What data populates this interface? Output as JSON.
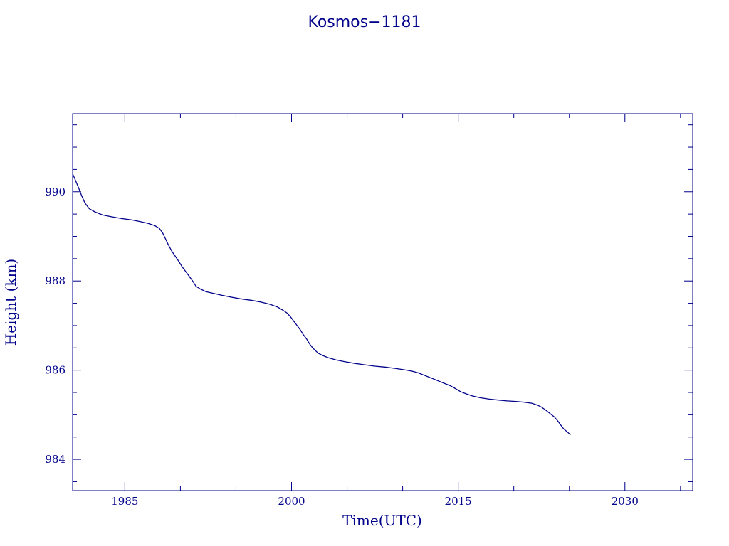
{
  "chart_data": {
    "type": "line",
    "title": "Kosmos−1181",
    "xlabel": "Time(UTC)",
    "ylabel": "Height  (km)",
    "xlim": [
      1980.3,
      2036.1
    ],
    "ylim": [
      983.3,
      991.75
    ],
    "x_ticks": [
      1985,
      2000,
      2015,
      2030
    ],
    "x_tick_labels": [
      "1985",
      "2000",
      "2015",
      "2030"
    ],
    "y_ticks": [
      984,
      986,
      988,
      990
    ],
    "y_tick_labels": [
      "984",
      "986",
      "988",
      "990"
    ],
    "grid": false,
    "line_color": "#00008b",
    "series": [
      {
        "x": [
          1980.3,
          1980.48,
          1980.65,
          1980.85,
          1981.1,
          1981.4,
          1981.8,
          1982.3,
          1983.0,
          1983.8,
          1984.7,
          1985.6,
          1986.4,
          1987.1,
          1987.7,
          1988.1,
          1988.4,
          1988.65,
          1988.9,
          1989.2,
          1989.55,
          1989.85,
          1990.15,
          1990.45,
          1990.75,
          1991.1,
          1991.4,
          1991.8,
          1992.3,
          1993.0,
          1993.7,
          1994.5,
          1995.4,
          1996.3,
          1997.2,
          1998.0,
          1998.7,
          1999.2,
          1999.6,
          1999.9,
          2000.2,
          2000.5,
          2000.8,
          2001.05,
          2001.35,
          2001.65,
          2001.9,
          2002.1,
          2002.4,
          2002.8,
          2003.3,
          2004.0,
          2004.8,
          2005.7,
          2006.6,
          2007.5,
          2008.4,
          2009.3,
          2010.1,
          2010.8,
          2011.4,
          2012.0,
          2012.6,
          2013.2,
          2013.8,
          2014.3,
          2014.8,
          2015.2,
          2015.7,
          2016.3,
          2017.0,
          2017.8,
          2018.6,
          2019.4,
          2020.2,
          2021.0,
          2021.6,
          2022.1,
          2022.5,
          2022.9,
          2023.3,
          2023.65,
          2023.9,
          2024.2,
          2024.5,
          2024.8,
          2025.1
        ],
        "y": [
          990.4,
          990.3,
          990.2,
          990.08,
          989.92,
          989.75,
          989.62,
          989.55,
          989.48,
          989.44,
          989.4,
          989.37,
          989.33,
          989.29,
          989.24,
          989.18,
          989.08,
          988.95,
          988.82,
          988.68,
          988.55,
          988.44,
          988.32,
          988.22,
          988.12,
          988.0,
          987.88,
          987.82,
          987.76,
          987.72,
          987.68,
          987.64,
          987.6,
          987.57,
          987.53,
          987.48,
          987.42,
          987.35,
          987.28,
          987.2,
          987.1,
          987.0,
          986.9,
          986.8,
          986.7,
          986.58,
          986.5,
          986.45,
          986.38,
          986.33,
          986.28,
          986.23,
          986.19,
          986.15,
          986.12,
          986.09,
          986.07,
          986.04,
          986.01,
          985.98,
          985.94,
          985.88,
          985.82,
          985.76,
          985.7,
          985.65,
          985.58,
          985.52,
          985.47,
          985.42,
          985.38,
          985.35,
          985.33,
          985.31,
          985.3,
          985.28,
          985.26,
          985.22,
          985.17,
          985.1,
          985.02,
          984.95,
          984.88,
          984.78,
          984.68,
          984.62,
          984.55
        ]
      }
    ]
  }
}
